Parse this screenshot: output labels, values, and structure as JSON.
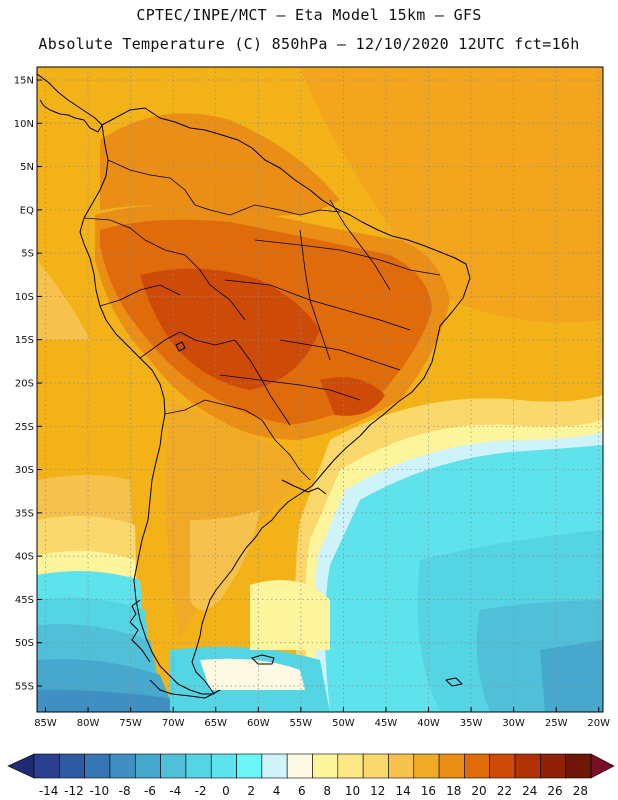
{
  "header": {
    "line1": "CPTEC/INPE/MCT –  Eta Model 15km – GFS",
    "line2": "Absolute Temperature (C) 850hPa – 12/10/2020 12UTC fct=16h"
  },
  "map": {
    "lat_labels": [
      "15N",
      "10N",
      "5N",
      "EQ",
      "5S",
      "10S",
      "15S",
      "20S",
      "25S",
      "30S",
      "35S",
      "40S",
      "45S",
      "50S",
      "55S"
    ],
    "lat_values": [
      15,
      10,
      5,
      0,
      -5,
      -10,
      -15,
      -20,
      -25,
      -30,
      -35,
      -40,
      -45,
      -50,
      -55
    ],
    "lon_labels": [
      "85W",
      "80W",
      "75W",
      "70W",
      "65W",
      "60W",
      "55W",
      "50W",
      "45W",
      "40W",
      "35W",
      "30W",
      "25W",
      "20W"
    ],
    "lon_values": [
      -85,
      -80,
      -75,
      -70,
      -65,
      -60,
      -55,
      -50,
      -45,
      -40,
      -35,
      -30,
      -25,
      -20
    ],
    "extent": {
      "west": -86,
      "east": -19.5,
      "south": -58,
      "north": 16.5
    },
    "grid": true,
    "ocean_color": "#f4b219"
  },
  "colorbar": {
    "labels": [
      "-14",
      "-12",
      "-10",
      "-8",
      "-6",
      "-4",
      "-2",
      "0",
      "2",
      "4",
      "6",
      "8",
      "10",
      "12",
      "14",
      "16",
      "18",
      "20",
      "22",
      "24",
      "26",
      "28"
    ],
    "colors": [
      "#2a3f8f",
      "#2e5aa2",
      "#3575b4",
      "#3f8fc2",
      "#46a8cd",
      "#4fc0d8",
      "#55d4e3",
      "#5ee3ec",
      "#6cf5f5",
      "#cff3fb",
      "#fdf9e2",
      "#fdf59b",
      "#fce986",
      "#fad86b",
      "#f6c24d",
      "#f1aa28",
      "#ea8e16",
      "#e06b0b",
      "#ce4a08",
      "#b13207",
      "#8f2206",
      "#6e1707"
    ],
    "low_arrow": "#1e2a72",
    "high_arrow": "#7a0e24"
  }
}
